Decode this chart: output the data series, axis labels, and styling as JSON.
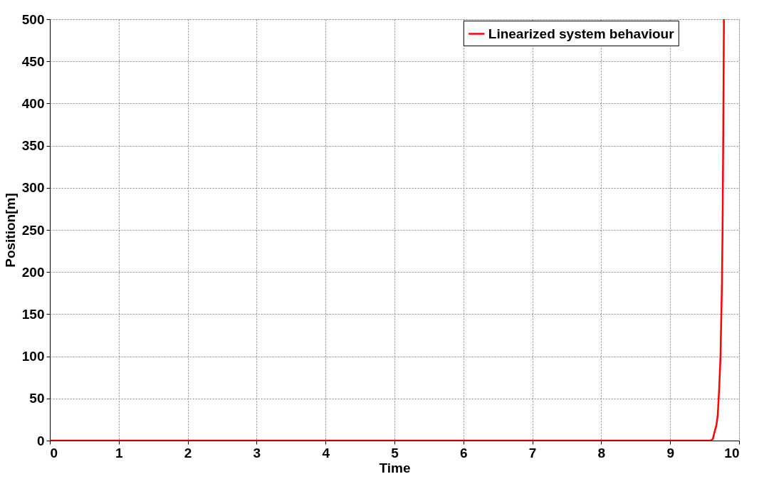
{
  "chart_data": {
    "type": "line",
    "xlabel": "Time",
    "ylabel": "Position[m]",
    "x": [
      0,
      8.6,
      9.59,
      9.62,
      9.64,
      9.67,
      9.69,
      9.71,
      9.73,
      9.75,
      9.76,
      9.77,
      9.78
    ],
    "series": [
      {
        "name": "Linearized system behaviour",
        "color": "#ff0000",
        "values": [
          0,
          0,
          0,
          2,
          9,
          18,
          30,
          60,
          99,
          180,
          250,
          360,
          500
        ]
      }
    ],
    "xlim": [
      0,
      10
    ],
    "xticks": [
      0,
      1,
      2,
      3,
      4,
      5,
      6,
      7,
      8,
      9,
      10
    ],
    "ylim": [
      0,
      500
    ],
    "yticks": [
      0,
      50,
      100,
      150,
      200,
      250,
      300,
      350,
      400,
      450,
      500
    ],
    "grid": true,
    "legend": "top right",
    "marker": "none",
    "line_style": "solid"
  }
}
